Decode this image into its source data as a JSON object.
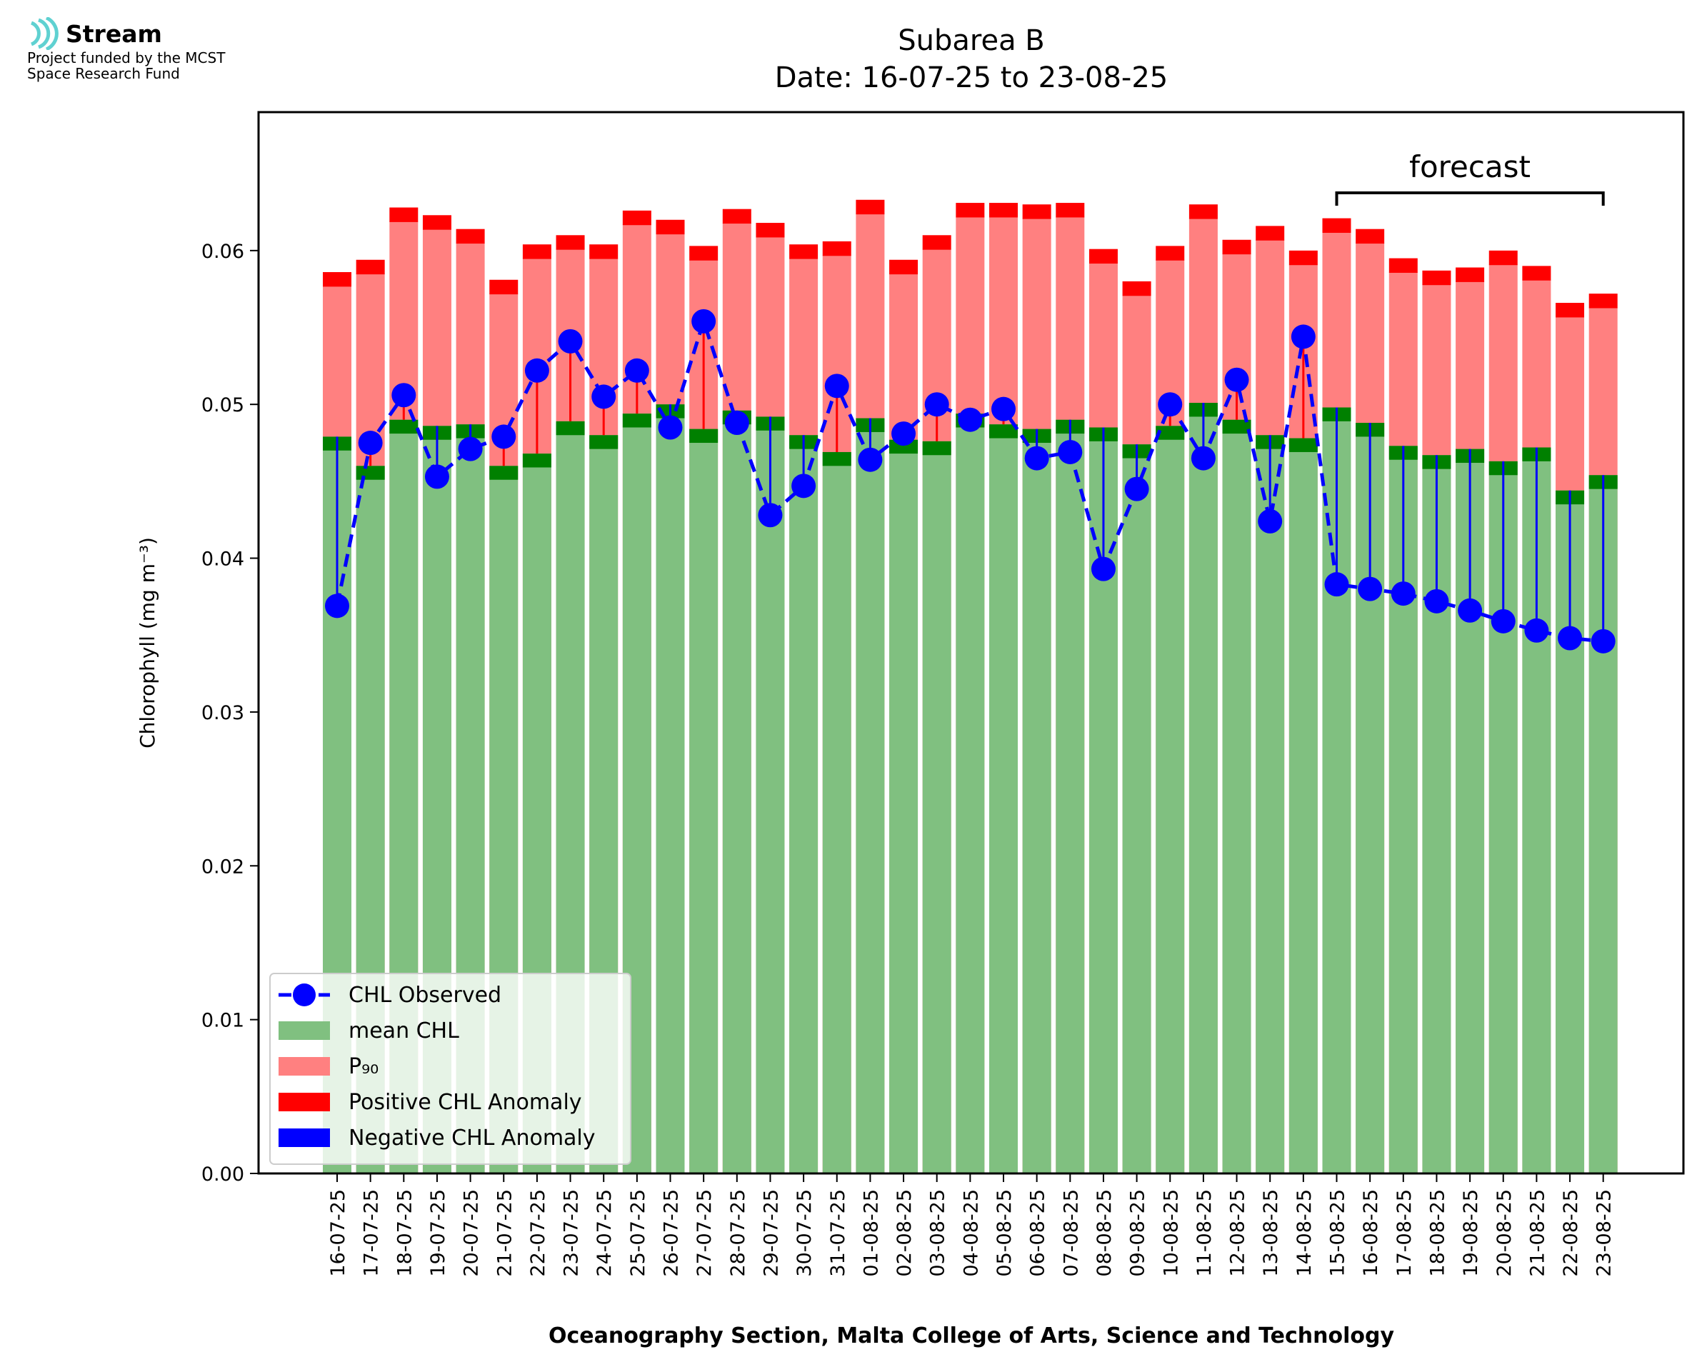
{
  "logo": {
    "name": "Stream",
    "line1": "Project funded by the MCST",
    "line2": "Space Research Fund"
  },
  "chart_data": {
    "type": "bar",
    "title": "Subarea B",
    "subtitle": "Date: 16-07-25 to 23-08-25",
    "xlabel": "Oceanography Section, Malta College of Arts, Science and Technology",
    "ylabel": "Chlorophyll (mg m⁻³)",
    "ylim": [
      0,
      0.069
    ],
    "yticks": [
      "0.00",
      "0.01",
      "0.02",
      "0.03",
      "0.04",
      "0.05",
      "0.06"
    ],
    "categories": [
      "16-07-25",
      "17-07-25",
      "18-07-25",
      "19-07-25",
      "20-07-25",
      "21-07-25",
      "22-07-25",
      "23-07-25",
      "24-07-25",
      "25-07-25",
      "26-07-25",
      "27-07-25",
      "28-07-25",
      "29-07-25",
      "30-07-25",
      "31-07-25",
      "01-08-25",
      "02-08-25",
      "03-08-25",
      "04-08-25",
      "05-08-25",
      "06-08-25",
      "07-08-25",
      "08-08-25",
      "09-08-25",
      "10-08-25",
      "11-08-25",
      "12-08-25",
      "13-08-25",
      "14-08-25",
      "15-08-25",
      "16-08-25",
      "17-08-25",
      "18-08-25",
      "19-08-25",
      "20-08-25",
      "21-08-25",
      "22-08-25",
      "23-08-25"
    ],
    "series": [
      {
        "name": "mean CHL",
        "color": "#80c080",
        "values": [
          0.0479,
          0.046,
          0.049,
          0.0486,
          0.0487,
          0.046,
          0.0468,
          0.0489,
          0.048,
          0.0494,
          0.05,
          0.0484,
          0.0496,
          0.0492,
          0.048,
          0.0469,
          0.0491,
          0.0477,
          0.0476,
          0.0494,
          0.0487,
          0.0484,
          0.049,
          0.0485,
          0.0474,
          0.0486,
          0.0501,
          0.049,
          0.048,
          0.0478,
          0.0498,
          0.0488,
          0.0473,
          0.0467,
          0.0471,
          0.0463,
          0.0472,
          0.0444,
          0.0454
        ]
      },
      {
        "name": "P₉₀",
        "color": "#ff8080",
        "values": [
          0.0577,
          0.0585,
          0.0619,
          0.0614,
          0.0605,
          0.0572,
          0.0595,
          0.0601,
          0.0595,
          0.0617,
          0.0611,
          0.0594,
          0.0618,
          0.0609,
          0.0595,
          0.0597,
          0.0624,
          0.0585,
          0.0601,
          0.0622,
          0.0622,
          0.0621,
          0.0622,
          0.0592,
          0.0571,
          0.0594,
          0.0621,
          0.0598,
          0.0607,
          0.0591,
          0.0612,
          0.0605,
          0.0586,
          0.0578,
          0.058,
          0.0591,
          0.0581,
          0.0557,
          0.0563
        ]
      },
      {
        "name": "CHL Observed",
        "color": "#0000ff",
        "values": [
          0.0369,
          0.0475,
          0.0506,
          0.0453,
          0.0471,
          0.0479,
          0.0522,
          0.0541,
          0.0505,
          0.0522,
          0.0485,
          0.0554,
          0.0488,
          0.0428,
          0.0447,
          0.0512,
          0.0464,
          0.0481,
          0.05,
          0.049,
          0.0497,
          0.0465,
          0.0469,
          0.0393,
          0.0445,
          0.05,
          0.0465,
          0.0516,
          0.0424,
          0.0544,
          0.0383,
          0.038,
          0.0377,
          0.0372,
          0.0366,
          0.0359,
          0.0353,
          0.0348,
          0.0346
        ]
      }
    ],
    "legend": [
      "CHL Observed",
      "mean CHL",
      "P₉₀",
      "Positive CHL Anomaly",
      "Negative CHL Anomaly"
    ],
    "legend_colors": {
      "pos": "#ff0000",
      "neg": "#0000ff",
      "mean_edge": "#008000"
    },
    "legend_position": "lower left",
    "annotation": "forecast",
    "forecast_range": [
      "15-08-25",
      "23-08-25"
    ]
  }
}
